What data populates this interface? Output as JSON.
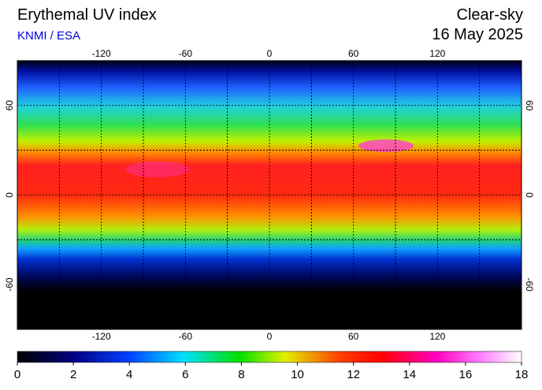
{
  "header": {
    "title": "Erythemal UV index",
    "source": "KNMI / ESA",
    "sky": "Clear-sky",
    "date": "16 May 2025"
  },
  "map": {
    "lonlim": [
      -180,
      180
    ],
    "latlim": [
      -90,
      90
    ],
    "lon_ticks": [
      -120,
      -60,
      0,
      60,
      120
    ],
    "lat_ticks": [
      60,
      0,
      -60
    ]
  },
  "colorbar": {
    "lim": [
      0,
      18
    ],
    "ticks": [
      0,
      2,
      4,
      6,
      8,
      10,
      12,
      14,
      16,
      18
    ]
  }
}
